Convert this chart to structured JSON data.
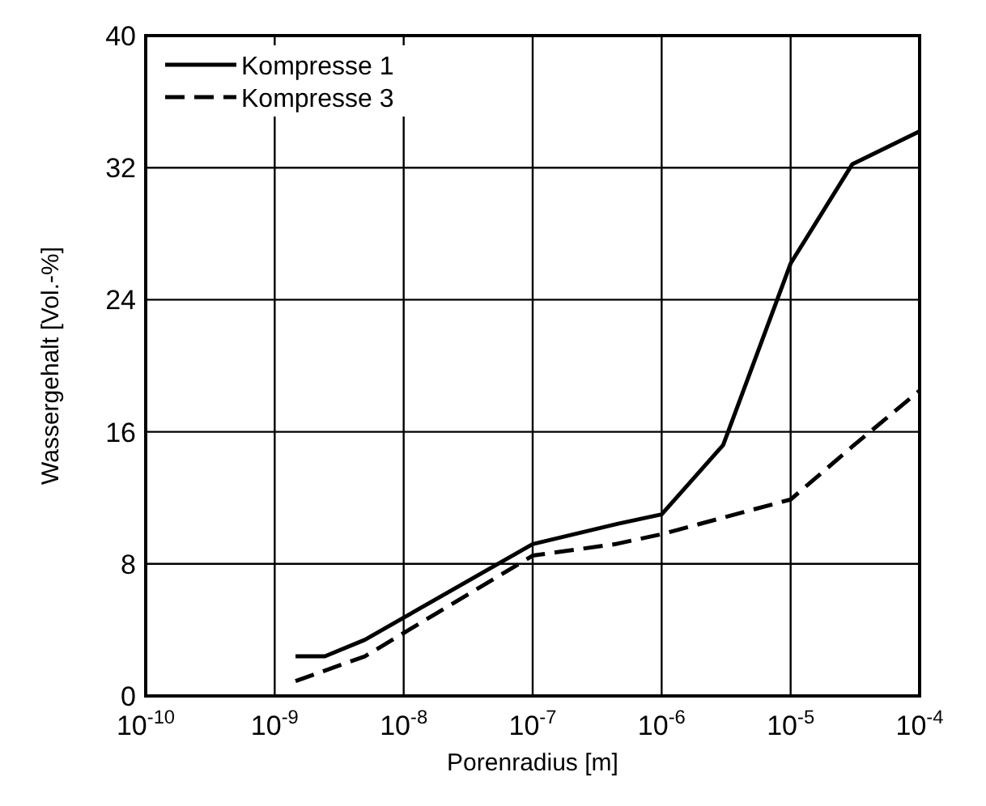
{
  "chart_data": {
    "type": "line",
    "xlabel": "Porenradius [m]",
    "ylabel": "Wassergehalt [Vol.-%]",
    "log": "x",
    "xlim": [
      1e-10,
      0.0001
    ],
    "xticks": [
      {
        "value": 1e-10,
        "label": "10$^{-10}$"
      },
      {
        "value": 1e-09,
        "label": "10$^{-9}$"
      },
      {
        "value": 1e-08,
        "label": "10$^{-8}$"
      },
      {
        "value": 1e-07,
        "label": "10$^{-7}$"
      },
      {
        "value": 1e-06,
        "label": "10$^{-6}$"
      },
      {
        "value": 1e-05,
        "label": "10$^{-5}$"
      },
      {
        "value": 0.0001,
        "label": "10$^{-4}$"
      }
    ],
    "ylim": [
      0,
      40
    ],
    "yticks": [
      0,
      8,
      16,
      24,
      32,
      40
    ],
    "grid": true,
    "legend": "top left",
    "marker": "none",
    "series": [
      {
        "name": "Kompresse 1",
        "color": "#000000",
        "line_style": "solid",
        "x": [
          1.45e-09,
          2.45e-09,
          5e-09,
          1e-07,
          4.4e-07,
          1e-06,
          3e-06,
          1e-05,
          3e-05,
          0.0001
        ],
        "values": [
          2.4,
          2.4,
          3.4,
          9.2,
          10.4,
          11.0,
          15.2,
          26.2,
          32.2,
          34.2
        ]
      },
      {
        "name": "Kompresse 3",
        "color": "#000000",
        "line_style": "dashed",
        "x": [
          1.45e-09,
          5e-09,
          1e-07,
          4.4e-07,
          1e-06,
          1e-05,
          3e-05,
          0.0001
        ],
        "values": [
          0.9,
          2.4,
          8.5,
          9.2,
          9.8,
          11.9,
          15.1,
          18.5
        ]
      }
    ]
  }
}
